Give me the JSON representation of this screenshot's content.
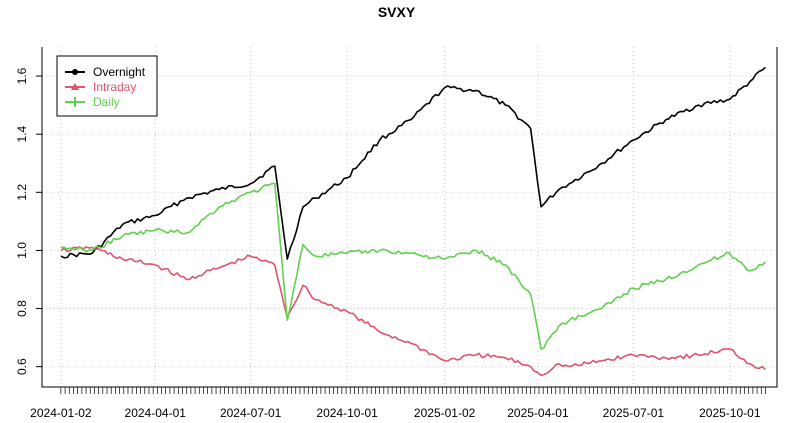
{
  "chart_data": {
    "type": "line",
    "title": "SVXY",
    "xlabel": "",
    "ylabel": "",
    "x_tick_labels": [
      "2024-01-02",
      "2024-04-01",
      "2024-07-01",
      "2024-10-01",
      "2025-01-02",
      "2025-04-01",
      "2025-07-01",
      "2025-10-01"
    ],
    "y_tick_labels": [
      "0.6",
      "0.8",
      "1.0",
      "1.2",
      "1.4",
      "1.6"
    ],
    "ylim": [
      0.53,
      1.7
    ],
    "xlim": [
      "2023-12-15",
      "2025-11-15"
    ],
    "grid": true,
    "legend_position": "top-left",
    "x": [
      "2024-01-02",
      "2024-02-01",
      "2024-03-01",
      "2024-04-01",
      "2024-05-01",
      "2024-06-01",
      "2024-07-01",
      "2024-07-24",
      "2024-08-05",
      "2024-08-20",
      "2024-09-01",
      "2024-10-01",
      "2024-11-01",
      "2024-12-01",
      "2025-01-02",
      "2025-02-01",
      "2025-03-01",
      "2025-03-25",
      "2025-04-04",
      "2025-04-21",
      "2025-05-01",
      "2025-06-01",
      "2025-07-01",
      "2025-08-01",
      "2025-09-01",
      "2025-10-01",
      "2025-10-20",
      "2025-11-04"
    ],
    "series": [
      {
        "name": "Overnight",
        "color": "#000000",
        "marker": "circle",
        "values": [
          0.98,
          0.99,
          1.09,
          1.12,
          1.18,
          1.21,
          1.23,
          1.29,
          0.97,
          1.15,
          1.18,
          1.25,
          1.38,
          1.45,
          1.56,
          1.55,
          1.5,
          1.42,
          1.15,
          1.21,
          1.23,
          1.3,
          1.38,
          1.45,
          1.5,
          1.52,
          1.58,
          1.63
        ]
      },
      {
        "name": "Intraday",
        "color": "#DF536B",
        "marker": "triangle",
        "values": [
          1.0,
          1.01,
          0.97,
          0.95,
          0.9,
          0.94,
          0.98,
          0.95,
          0.77,
          0.88,
          0.83,
          0.79,
          0.72,
          0.68,
          0.62,
          0.64,
          0.63,
          0.6,
          0.57,
          0.61,
          0.6,
          0.62,
          0.64,
          0.63,
          0.64,
          0.66,
          0.61,
          0.59
        ]
      },
      {
        "name": "Daily",
        "color": "#61D04F",
        "marker": "plus",
        "values": [
          1.01,
          1.0,
          1.05,
          1.07,
          1.06,
          1.15,
          1.2,
          1.23,
          0.76,
          1.02,
          0.98,
          0.99,
          1.0,
          0.99,
          0.97,
          1.0,
          0.95,
          0.85,
          0.66,
          0.74,
          0.76,
          0.8,
          0.87,
          0.9,
          0.95,
          0.99,
          0.93,
          0.96
        ]
      }
    ]
  }
}
